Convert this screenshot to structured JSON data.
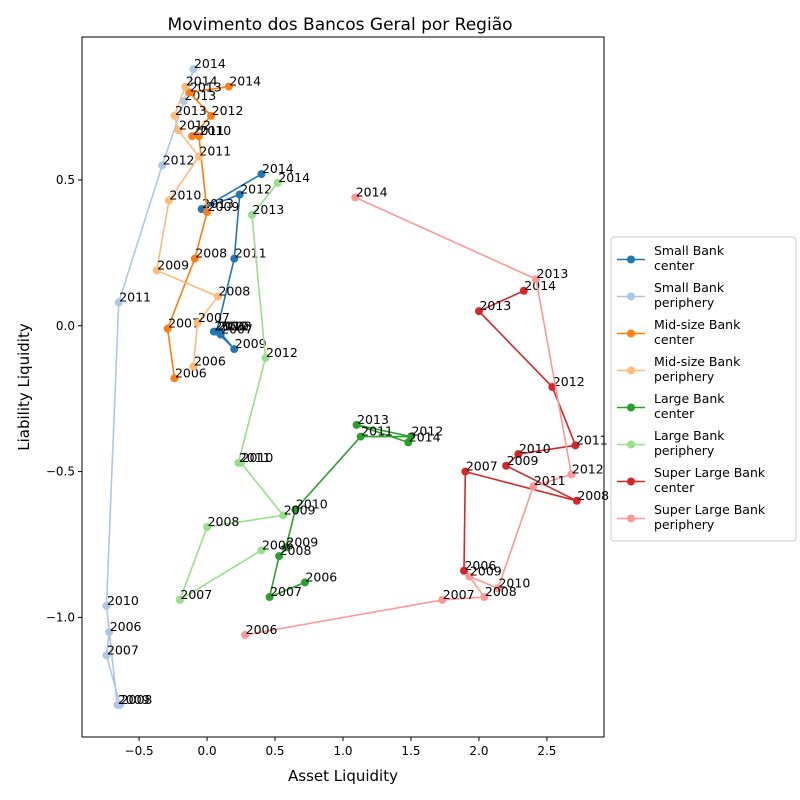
{
  "chart_data": {
    "type": "line",
    "title": "Movimento dos Bancos Geral por Região",
    "xlabel": "Asset Liquidity",
    "ylabel": "Liability Liquidity",
    "xlim": [
      -0.92,
      2.92
    ],
    "ylim": [
      -1.41,
      0.99
    ],
    "xticks": [
      -0.5,
      0.0,
      0.5,
      1.0,
      1.5,
      2.0,
      2.5
    ],
    "xtick_labels": [
      "−0.5",
      "0.0",
      "0.5",
      "1.0",
      "1.5",
      "2.0",
      "2.5"
    ],
    "yticks": [
      -1.0,
      -0.5,
      0.0,
      0.5
    ],
    "ytick_labels": [
      "−1.0",
      "−0.5",
      "0.0",
      "0.5"
    ],
    "grid": false,
    "legend_position": "center-right-outside",
    "series": [
      {
        "name": "Small Bank\ncenter",
        "color": "#1f77b4",
        "points": [
          {
            "year": "2006",
            "x": 0.05,
            "y": -0.02
          },
          {
            "year": "2007",
            "x": 0.1,
            "y": -0.03
          },
          {
            "year": "2008",
            "x": 0.09,
            "y": -0.02
          },
          {
            "year": "2009",
            "x": 0.2,
            "y": -0.08
          },
          {
            "year": "2010",
            "x": 0.07,
            "y": -0.02
          },
          {
            "year": "2011",
            "x": 0.2,
            "y": 0.23
          },
          {
            "year": "2012",
            "x": 0.24,
            "y": 0.45
          },
          {
            "year": "2013",
            "x": -0.04,
            "y": 0.4
          },
          {
            "year": "2014",
            "x": 0.4,
            "y": 0.52
          }
        ]
      },
      {
        "name": "Small Bank\nperiphery",
        "color": "#aec7e8",
        "points": [
          {
            "year": "2006",
            "x": -0.72,
            "y": -1.05
          },
          {
            "year": "2007",
            "x": -0.74,
            "y": -1.13
          },
          {
            "year": "2008",
            "x": -0.64,
            "y": -1.3
          },
          {
            "year": "2009",
            "x": -0.66,
            "y": -1.3
          },
          {
            "year": "2010",
            "x": -0.74,
            "y": -0.96
          },
          {
            "year": "2011",
            "x": -0.65,
            "y": 0.08
          },
          {
            "year": "2012",
            "x": -0.33,
            "y": 0.55
          },
          {
            "year": "2013",
            "x": -0.17,
            "y": 0.77
          },
          {
            "year": "2014",
            "x": -0.1,
            "y": 0.88
          }
        ]
      },
      {
        "name": "Mid-size Bank\ncenter",
        "color": "#ff7f0e",
        "points": [
          {
            "year": "2006",
            "x": -0.24,
            "y": -0.18
          },
          {
            "year": "2007",
            "x": -0.29,
            "y": -0.01
          },
          {
            "year": "2008",
            "x": -0.09,
            "y": 0.23
          },
          {
            "year": "2009",
            "x": 0.0,
            "y": 0.39
          },
          {
            "year": "2010",
            "x": -0.06,
            "y": 0.65
          },
          {
            "year": "2011",
            "x": -0.11,
            "y": 0.65
          },
          {
            "year": "2012",
            "x": 0.03,
            "y": 0.72
          },
          {
            "year": "2013",
            "x": -0.13,
            "y": 0.8
          },
          {
            "year": "2014",
            "x": 0.16,
            "y": 0.82
          }
        ]
      },
      {
        "name": "Mid-size Bank\nperiphery",
        "color": "#ffbb78",
        "points": [
          {
            "year": "2006",
            "x": -0.1,
            "y": -0.14
          },
          {
            "year": "2007",
            "x": -0.07,
            "y": 0.01
          },
          {
            "year": "2008",
            "x": 0.08,
            "y": 0.1
          },
          {
            "year": "2009",
            "x": -0.37,
            "y": 0.19
          },
          {
            "year": "2010",
            "x": -0.28,
            "y": 0.43
          },
          {
            "year": "2011",
            "x": -0.06,
            "y": 0.58
          },
          {
            "year": "2012",
            "x": -0.21,
            "y": 0.67
          },
          {
            "year": "2013",
            "x": -0.24,
            "y": 0.72
          },
          {
            "year": "2014",
            "x": -0.16,
            "y": 0.82
          }
        ]
      },
      {
        "name": "Large Bank\ncenter",
        "color": "#2ca02c",
        "points": [
          {
            "year": "2006",
            "x": 0.72,
            "y": -0.88
          },
          {
            "year": "2007",
            "x": 0.46,
            "y": -0.93
          },
          {
            "year": "2008",
            "x": 0.53,
            "y": -0.79
          },
          {
            "year": "2009",
            "x": 0.58,
            "y": -0.76
          },
          {
            "year": "2010",
            "x": 0.65,
            "y": -0.63
          },
          {
            "year": "2011",
            "x": 1.13,
            "y": -0.38
          },
          {
            "year": "2012",
            "x": 1.5,
            "y": -0.38
          },
          {
            "year": "2013",
            "x": 1.1,
            "y": -0.34
          },
          {
            "year": "2014",
            "x": 1.48,
            "y": -0.4
          }
        ]
      },
      {
        "name": "Large Bank\nperiphery",
        "color": "#98df8a",
        "points": [
          {
            "year": "2006",
            "x": 0.4,
            "y": -0.77
          },
          {
            "year": "2007",
            "x": -0.2,
            "y": -0.94
          },
          {
            "year": "2008",
            "x": 0.0,
            "y": -0.69
          },
          {
            "year": "2009",
            "x": 0.56,
            "y": -0.65
          },
          {
            "year": "2010",
            "x": 0.25,
            "y": -0.47
          },
          {
            "year": "2011",
            "x": 0.23,
            "y": -0.47
          },
          {
            "year": "2012",
            "x": 0.43,
            "y": -0.11
          },
          {
            "year": "2013",
            "x": 0.33,
            "y": 0.38
          },
          {
            "year": "2014",
            "x": 0.52,
            "y": 0.49
          }
        ]
      },
      {
        "name": "Super Large Bank\ncenter",
        "color": "#d62728",
        "points": [
          {
            "year": "2006",
            "x": 1.89,
            "y": -0.84
          },
          {
            "year": "2007",
            "x": 1.9,
            "y": -0.5
          },
          {
            "year": "2008",
            "x": 2.72,
            "y": -0.6
          },
          {
            "year": "2009",
            "x": 2.2,
            "y": -0.48
          },
          {
            "year": "2010",
            "x": 2.29,
            "y": -0.44
          },
          {
            "year": "2011",
            "x": 2.71,
            "y": -0.41
          },
          {
            "year": "2012",
            "x": 2.54,
            "y": -0.21
          },
          {
            "year": "2013",
            "x": 2.0,
            "y": 0.05
          },
          {
            "year": "2014",
            "x": 2.33,
            "y": 0.12
          }
        ]
      },
      {
        "name": "Super Large Bank\nperiphery",
        "color": "#ff9896",
        "points": [
          {
            "year": "2006",
            "x": 0.28,
            "y": -1.06
          },
          {
            "year": "2007",
            "x": 1.73,
            "y": -0.94
          },
          {
            "year": "2008",
            "x": 2.04,
            "y": -0.93
          },
          {
            "year": "2009",
            "x": 1.93,
            "y": -0.86
          },
          {
            "year": "2010",
            "x": 2.14,
            "y": -0.9
          },
          {
            "year": "2011",
            "x": 2.4,
            "y": -0.55
          },
          {
            "year": "2012",
            "x": 2.68,
            "y": -0.51
          },
          {
            "year": "2013",
            "x": 2.42,
            "y": 0.16
          },
          {
            "year": "2014",
            "x": 1.09,
            "y": 0.44
          }
        ]
      }
    ]
  }
}
